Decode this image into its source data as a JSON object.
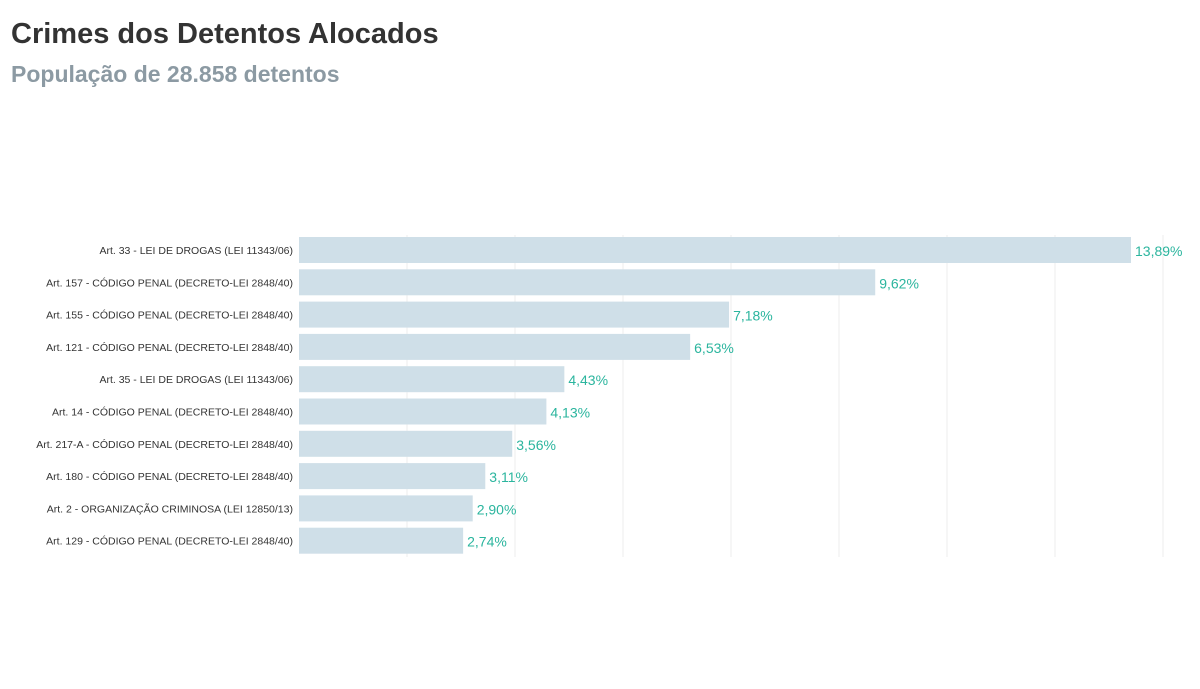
{
  "header": {
    "title": "Crimes dos Detentos Alocados",
    "subtitle": "População de 28.858 detentos"
  },
  "colors": {
    "bar": "#cfdfe8",
    "value_label": "#2bb59e",
    "grid": "#eeeeee",
    "title": "#333333",
    "subtitle": "#8c9aa3"
  },
  "chart_data": {
    "type": "bar",
    "orientation": "horizontal",
    "title": "Crimes dos Detentos Alocados",
    "subtitle": "População de 28.858 detentos",
    "xlabel": "",
    "ylabel": "",
    "xlim": [
      0,
      14
    ],
    "grid": "vertical",
    "categories": [
      "Art. 33 - LEI DE DROGAS (LEI 11343/06)",
      "Art. 157 - CÓDIGO PENAL (DECRETO-LEI 2848/40)",
      "Art. 155 - CÓDIGO PENAL (DECRETO-LEI 2848/40)",
      "Art. 121 - CÓDIGO PENAL (DECRETO-LEI 2848/40)",
      "Art. 35 - LEI DE DROGAS (LEI 11343/06)",
      "Art. 14 - CÓDIGO PENAL (DECRETO-LEI 2848/40)",
      "Art. 217-A - CÓDIGO PENAL (DECRETO-LEI 2848/40)",
      "Art. 180 - CÓDIGO PENAL (DECRETO-LEI 2848/40)",
      "Art. 2 - ORGANIZAÇÃO CRIMINOSA (LEI 12850/13)",
      "Art. 129 - CÓDIGO PENAL (DECRETO-LEI 2848/40)"
    ],
    "values": [
      13.89,
      9.62,
      7.18,
      6.53,
      4.43,
      4.13,
      3.56,
      3.11,
      2.9,
      2.74
    ],
    "value_labels": [
      "13,89%",
      "9,62%",
      "7,18%",
      "6,53%",
      "4,43%",
      "4,13%",
      "3,56%",
      "3,11%",
      "2,90%",
      "2,74%"
    ]
  }
}
